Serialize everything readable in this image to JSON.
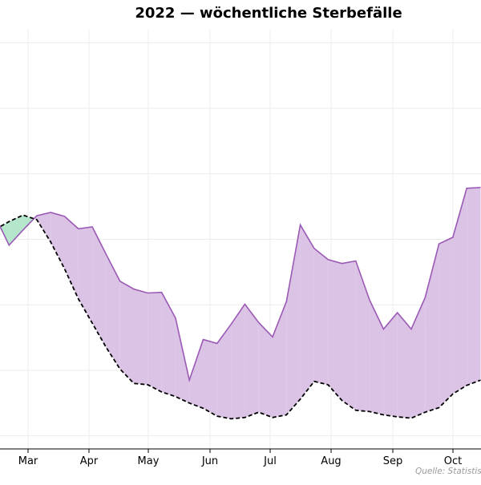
{
  "chart_data": {
    "type": "area",
    "title": "2022 — wöchentliche Sterbefälle",
    "xlabel": "",
    "ylabel": "",
    "source": "Quelle: Statistis",
    "x_tick_labels": [
      "Mar",
      "Apr",
      "May",
      "Jun",
      "Jul",
      "Aug",
      "Sep",
      "Oct"
    ],
    "grid": true,
    "legend": "none",
    "series": [
      {
        "values": [
          355,
          311,
          334,
          356,
          361,
          355,
          336,
          339,
          297,
          256,
          244,
          238,
          239,
          200,
          105,
          167,
          161,
          190,
          221,
          193,
          171,
          225,
          342,
          306,
          289,
          283,
          287,
          227,
          183,
          208,
          183,
          231,
          313,
          323,
          398,
          399
        ],
        "color": "#9b59b6"
      },
      {
        "values": [
          335,
          347,
          357,
          350,
          316,
          275,
          229,
          192,
          155,
          122,
          100,
          98,
          87,
          80,
          70,
          62,
          50,
          46,
          48,
          56,
          48,
          52,
          76,
          103,
          98,
          74,
          59,
          57,
          52,
          49,
          47,
          56,
          63,
          84,
          97,
          105
        ],
        "color": "#000000"
      }
    ],
    "fill_above_color": "#dbc3e5",
    "fill_below_color": "#b3e6cb"
  }
}
